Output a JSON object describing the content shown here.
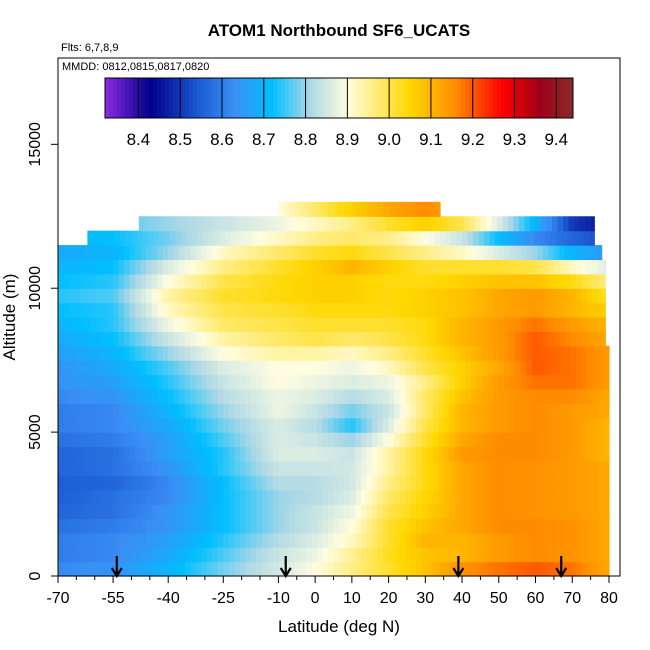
{
  "chart_data": {
    "type": "heatmap",
    "title": "ATOM1 Northbound SF6_UCATS",
    "annotations": {
      "flights": "Flts: 6,7,8,9",
      "dates": "MMDD: 0812,0815,0817,0820"
    },
    "xlabel": "Latitude (deg N)",
    "ylabel": "Altitude (m)",
    "xlim": [
      -70,
      83
    ],
    "ylim": [
      0,
      18000
    ],
    "x_ticks": [
      -70,
      -55,
      -40,
      -25,
      -10,
      0,
      10,
      20,
      30,
      40,
      50,
      60,
      70,
      80
    ],
    "x_minor_ticks": [
      -65,
      -60,
      -50,
      -45,
      -35,
      -30,
      -20,
      -15,
      -5,
      5,
      15,
      25,
      35,
      45,
      55,
      65,
      75
    ],
    "y_ticks": [
      0,
      5000,
      10000,
      15000
    ],
    "colorbar": {
      "min": 8.32,
      "max": 9.44,
      "ticks": [
        8.4,
        8.5,
        8.6,
        8.7,
        8.8,
        8.9,
        9.0,
        9.1,
        9.2,
        9.3,
        9.4
      ],
      "boundaries": [
        8.4,
        8.5,
        8.6,
        8.7,
        8.8,
        8.9,
        9.0,
        9.1,
        9.2,
        9.3,
        9.4
      ],
      "colors": [
        "#8a2be2",
        "#00008b",
        "#1e5fd6",
        "#3a8ff5",
        "#00bfff",
        "#add8e6",
        "#fffde0",
        "#ffd700",
        "#ff8c00",
        "#ff0000",
        "#a0001a",
        "#8b2a2a"
      ],
      "color_stops": [
        8.32,
        8.43,
        8.55,
        8.63,
        8.72,
        8.81,
        8.9,
        9.05,
        9.16,
        9.27,
        9.36,
        9.44
      ]
    },
    "arrows_latitude": [
      -54,
      -8,
      39,
      67
    ],
    "grid": false,
    "field": {
      "alt_bins_m": [
        0,
        500,
        1000,
        1500,
        2000,
        2500,
        3000,
        3500,
        4000,
        4500,
        5000,
        5500,
        6000,
        6500,
        7000,
        7500,
        8000,
        8500,
        9000,
        9500,
        10000,
        10500,
        11000,
        11500,
        12000,
        12500
      ],
      "alt_step_m": 500,
      "lat_extent_by_alt": [
        [
          -70,
          80
        ],
        [
          -70,
          80
        ],
        [
          -70,
          80
        ],
        [
          -70,
          80
        ],
        [
          -70,
          80
        ],
        [
          -70,
          80
        ],
        [
          -70,
          80
        ],
        [
          -70,
          80
        ],
        [
          -70,
          80
        ],
        [
          -70,
          80
        ],
        [
          -70,
          80
        ],
        [
          -70,
          80
        ],
        [
          -70,
          80
        ],
        [
          -70,
          80
        ],
        [
          -70,
          80
        ],
        [
          -70,
          80
        ],
        [
          -70,
          79
        ],
        [
          -70,
          79
        ],
        [
          -70,
          79
        ],
        [
          -70,
          79
        ],
        [
          -70,
          79
        ],
        [
          -70,
          79
        ],
        [
          -70,
          78
        ],
        [
          -62,
          76
        ],
        [
          -48,
          76
        ],
        [
          -10,
          34
        ]
      ],
      "lat_anchors": [
        -70,
        -55,
        -40,
        -25,
        -10,
        0,
        10,
        20,
        30,
        40,
        50,
        60,
        70,
        80
      ],
      "anchor_values_by_alt": [
        [
          8.62,
          8.64,
          8.7,
          8.78,
          8.85,
          8.9,
          8.96,
          9.02,
          9.08,
          9.15,
          9.18,
          9.2,
          9.18,
          9.12
        ],
        [
          8.6,
          8.62,
          8.68,
          8.76,
          8.84,
          8.88,
          8.95,
          9.03,
          9.08,
          9.1,
          9.14,
          9.16,
          9.15,
          9.12
        ],
        [
          8.6,
          8.62,
          8.66,
          8.74,
          8.82,
          8.86,
          8.92,
          9.02,
          9.1,
          9.1,
          9.14,
          9.16,
          9.15,
          9.12
        ],
        [
          8.58,
          8.6,
          8.64,
          8.72,
          8.8,
          8.84,
          8.9,
          9.02,
          9.08,
          9.12,
          9.16,
          9.16,
          9.15,
          9.12
        ],
        [
          8.56,
          8.58,
          8.64,
          8.72,
          8.8,
          8.84,
          8.88,
          9.0,
          9.06,
          9.12,
          9.16,
          9.15,
          9.14,
          9.12
        ],
        [
          8.55,
          8.58,
          8.62,
          8.72,
          8.8,
          8.82,
          8.86,
          8.98,
          9.05,
          9.12,
          9.16,
          9.15,
          9.14,
          9.12
        ],
        [
          8.55,
          8.56,
          8.62,
          8.72,
          8.82,
          8.82,
          8.85,
          8.96,
          9.04,
          9.12,
          9.16,
          9.15,
          9.14,
          9.12
        ],
        [
          8.56,
          8.58,
          8.64,
          8.74,
          8.84,
          8.84,
          8.85,
          8.94,
          9.04,
          9.12,
          9.16,
          9.15,
          9.14,
          9.12
        ],
        [
          8.56,
          8.58,
          8.66,
          8.74,
          8.86,
          8.86,
          8.84,
          8.94,
          9.04,
          9.14,
          9.16,
          9.16,
          9.14,
          9.1
        ],
        [
          8.58,
          8.6,
          8.66,
          8.76,
          8.86,
          8.84,
          8.8,
          8.9,
          9.02,
          9.12,
          9.16,
          9.16,
          9.14,
          9.1
        ],
        [
          8.6,
          8.62,
          8.68,
          8.78,
          8.86,
          8.82,
          8.74,
          8.86,
          9.0,
          9.1,
          9.14,
          9.16,
          9.14,
          9.1
        ],
        [
          8.6,
          8.62,
          8.7,
          8.8,
          8.88,
          8.84,
          8.78,
          8.84,
          8.98,
          9.1,
          9.14,
          9.16,
          9.14,
          9.12
        ],
        [
          8.62,
          8.64,
          8.72,
          8.82,
          8.88,
          8.86,
          8.82,
          8.86,
          8.98,
          9.08,
          9.14,
          9.16,
          9.16,
          9.12
        ],
        [
          8.64,
          8.66,
          8.74,
          8.84,
          8.9,
          8.88,
          8.86,
          8.88,
          8.96,
          9.06,
          9.14,
          9.18,
          9.18,
          9.14
        ],
        [
          8.64,
          8.68,
          8.76,
          8.86,
          8.9,
          8.9,
          8.88,
          8.92,
          9.0,
          9.06,
          9.12,
          9.2,
          9.18,
          9.14
        ],
        [
          8.66,
          8.7,
          8.8,
          8.9,
          8.94,
          8.94,
          8.92,
          8.96,
          9.02,
          9.08,
          9.14,
          9.2,
          9.18,
          9.14
        ],
        [
          8.68,
          8.72,
          8.84,
          8.94,
          8.98,
          9.0,
          8.98,
          9.0,
          9.04,
          9.1,
          9.14,
          9.2,
          9.16,
          9.12
        ],
        [
          8.7,
          8.74,
          8.88,
          8.98,
          9.0,
          9.02,
          9.02,
          9.02,
          9.04,
          9.1,
          9.14,
          9.18,
          9.14,
          9.1
        ],
        [
          8.72,
          8.74,
          8.92,
          9.0,
          9.02,
          9.04,
          9.04,
          9.04,
          9.06,
          9.08,
          9.12,
          9.14,
          9.1,
          9.06
        ],
        [
          8.74,
          8.76,
          8.94,
          9.02,
          9.04,
          9.06,
          9.06,
          9.04,
          9.06,
          9.08,
          9.12,
          9.14,
          9.1,
          9.02
        ],
        [
          8.72,
          8.74,
          8.9,
          9.0,
          9.04,
          9.06,
          9.06,
          9.04,
          9.04,
          9.06,
          9.08,
          9.08,
          9.04,
          8.96
        ],
        [
          8.7,
          8.72,
          8.86,
          8.96,
          9.02,
          9.06,
          9.1,
          9.06,
          9.02,
          9.02,
          9.02,
          9.0,
          8.92,
          8.86
        ],
        [
          8.68,
          8.7,
          8.8,
          8.92,
          8.98,
          9.02,
          9.04,
          9.0,
          8.96,
          8.92,
          8.86,
          8.8,
          8.7,
          8.64
        ],
        [
          8.7,
          8.72,
          8.78,
          8.86,
          8.92,
          8.96,
          8.98,
          8.96,
          8.9,
          8.84,
          8.72,
          8.62,
          8.56,
          8.52
        ],
        [
          8.74,
          8.76,
          8.8,
          8.84,
          8.88,
          8.92,
          8.96,
          9.02,
          9.06,
          9.0,
          8.86,
          8.7,
          8.5,
          8.45
        ],
        [
          8.8,
          8.82,
          8.84,
          8.86,
          8.9,
          8.98,
          9.06,
          9.12,
          9.16,
          9.1,
          9.0,
          8.9,
          8.8,
          8.75
        ]
      ]
    }
  }
}
